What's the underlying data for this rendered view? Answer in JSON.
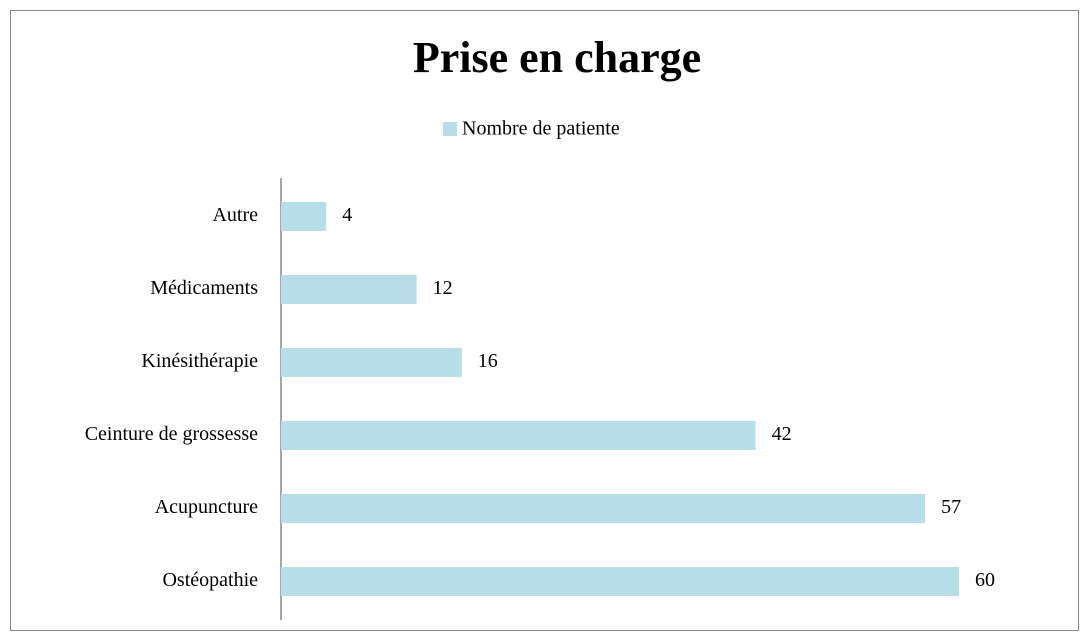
{
  "chart_data": {
    "type": "bar",
    "orientation": "horizontal",
    "title": "Prise en charge",
    "categories": [
      "Autre",
      "Médicaments",
      "Kinésithérapie",
      "Ceinture de grossesse",
      "Acupuncture",
      "Ostéopathie"
    ],
    "series": [
      {
        "name": "Nombre de patiente",
        "color": "#b7dde8",
        "values": [
          4,
          12,
          16,
          42,
          57,
          60
        ]
      }
    ],
    "legend": "top"
  }
}
